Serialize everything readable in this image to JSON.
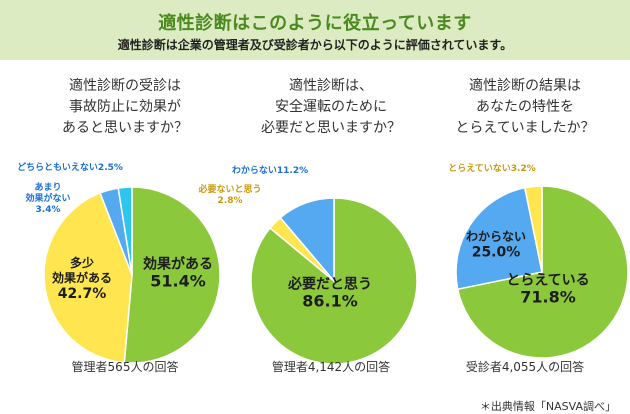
{
  "header": {
    "title": "適性診断はこのように役立っています",
    "subtitle": "適性診断は企業の管理者及び受診者から以下のように評価されています。"
  },
  "source": "＊出典情報「NASVA調べ」",
  "colors": {
    "green": "#8cc83c",
    "yellow": "#ffe650",
    "blue": "#55a9f0",
    "cyan": "#2ec6ef",
    "outline": "#ffffff"
  },
  "chart_data": [
    {
      "type": "pie",
      "title": "適性診断の受診は\n事故防止に効果が\nあると思いますか？",
      "note": "管理者565人の回答",
      "slices": [
        {
          "label": "効果がある",
          "value": 51.4,
          "value_text": "51.4%",
          "color": "#8cc83c"
        },
        {
          "label": "多少\n効果がある",
          "value": 42.7,
          "value_text": "42.7%",
          "color": "#ffe650"
        },
        {
          "label": "あまり\n効果がない\n3.4%",
          "value": 3.4,
          "value_text": "",
          "color": "#55a9f0"
        },
        {
          "label": "どちらともいえない2.5%",
          "value": 2.5,
          "value_text": "",
          "color": "#2ec6ef"
        }
      ]
    },
    {
      "type": "pie",
      "title": "適性診断は、\n安全運転のために\n必要だと思いますか？",
      "note": "管理者4,142人の回答",
      "slices": [
        {
          "label": "必要だと思う",
          "value": 86.1,
          "value_text": "86.1%",
          "color": "#8cc83c"
        },
        {
          "label": "必要ないと思う\n2.8%",
          "value": 2.8,
          "value_text": "",
          "color": "#ffe650"
        },
        {
          "label": "わからない11.2%",
          "value": 11.2,
          "value_text": "",
          "color": "#55a9f0"
        }
      ]
    },
    {
      "type": "pie",
      "title": "適性診断の結果は\nあなたの特性を\nとらえていましたか？",
      "note": "受診者4,055人の回答",
      "slices": [
        {
          "label": "とらえている",
          "value": 71.8,
          "value_text": "71.8%",
          "color": "#8cc83c"
        },
        {
          "label": "わからない",
          "value": 25.0,
          "value_text": "25.0%",
          "color": "#55a9f0"
        },
        {
          "label": "とらえていない3.2%",
          "value": 3.2,
          "value_text": "",
          "color": "#ffe650"
        }
      ]
    }
  ]
}
